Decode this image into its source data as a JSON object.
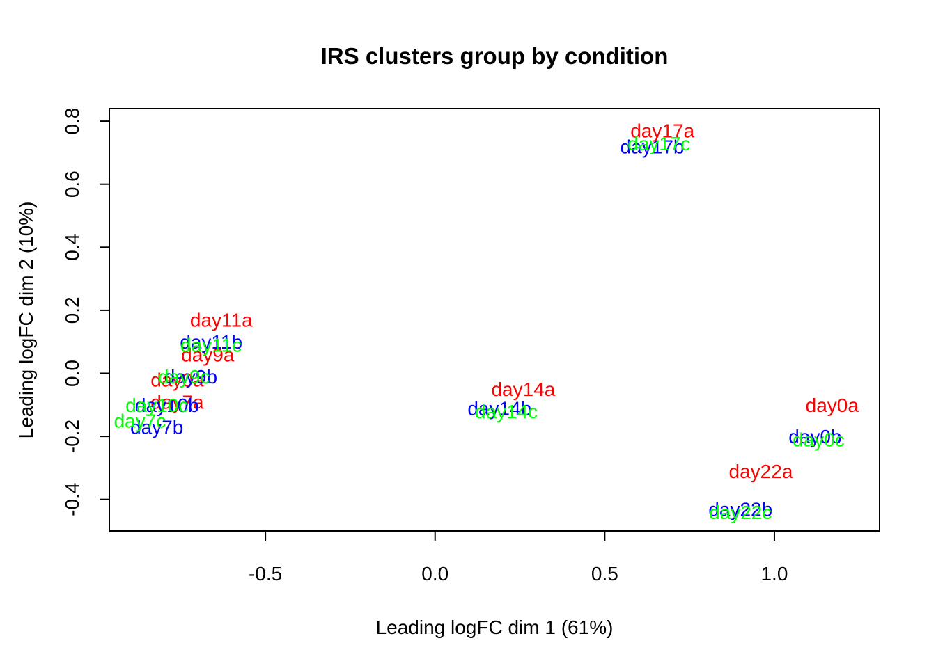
{
  "chart_data": {
    "type": "scatter",
    "title": "IRS clusters group by condition",
    "xlabel": "Leading logFC dim 1 (61%)",
    "ylabel": "Leading logFC dim 2 (10%)",
    "xlim": [
      -0.96,
      1.31
    ],
    "ylim": [
      -0.5,
      0.84
    ],
    "xticks": [
      -0.5,
      0.0,
      0.5,
      1.0
    ],
    "xtick_labels": [
      "-0.5",
      "0.0",
      "0.5",
      "1.0"
    ],
    "yticks": [
      -0.4,
      -0.2,
      0.0,
      0.2,
      0.4,
      0.6,
      0.8
    ],
    "ytick_labels": [
      "-0.4",
      "-0.2",
      "0.0",
      "0.2",
      "0.4",
      "0.6",
      "0.8"
    ],
    "grid": false,
    "colors": {
      "a": "#FF0000",
      "b": "#0000FF",
      "c": "#00FF00"
    },
    "points": [
      {
        "label": "day17a",
        "x": 0.67,
        "y": 0.77,
        "group": "a"
      },
      {
        "label": "day11a",
        "x": -0.63,
        "y": 0.17,
        "group": "a"
      },
      {
        "label": "day9a",
        "x": -0.67,
        "y": 0.06,
        "group": "a"
      },
      {
        "label": "day0a",
        "x": -0.76,
        "y": -0.02,
        "group": "a"
      },
      {
        "label": "day7a",
        "x": -0.76,
        "y": -0.09,
        "group": "a"
      },
      {
        "label": "day14a",
        "x": 0.26,
        "y": -0.05,
        "group": "a"
      },
      {
        "label": "day0a",
        "x": 1.17,
        "y": -0.1,
        "group": "a"
      },
      {
        "label": "day22a",
        "x": 0.96,
        "y": -0.31,
        "group": "a"
      },
      {
        "label": "day17b",
        "x": 0.64,
        "y": 0.72,
        "group": "b"
      },
      {
        "label": "day11b",
        "x": -0.66,
        "y": 0.1,
        "group": "b"
      },
      {
        "label": "day9b",
        "x": -0.72,
        "y": -0.01,
        "group": "b"
      },
      {
        "label": "day10b",
        "x": -0.79,
        "y": -0.1,
        "group": "b"
      },
      {
        "label": "day7b",
        "x": -0.82,
        "y": -0.17,
        "group": "b"
      },
      {
        "label": "day14b",
        "x": 0.19,
        "y": -0.11,
        "group": "b"
      },
      {
        "label": "day0b",
        "x": 1.12,
        "y": -0.2,
        "group": "b"
      },
      {
        "label": "day22b",
        "x": 0.9,
        "y": -0.43,
        "group": "b"
      },
      {
        "label": "day17c",
        "x": 0.66,
        "y": 0.73,
        "group": "c"
      },
      {
        "label": "day11c",
        "x": -0.66,
        "y": 0.09,
        "group": "c"
      },
      {
        "label": "day9c",
        "x": -0.74,
        "y": -0.01,
        "group": "c"
      },
      {
        "label": "day10c",
        "x": -0.82,
        "y": -0.1,
        "group": "c"
      },
      {
        "label": "day7c",
        "x": -0.87,
        "y": -0.15,
        "group": "c"
      },
      {
        "label": "day14c",
        "x": 0.21,
        "y": -0.12,
        "group": "c"
      },
      {
        "label": "day0c",
        "x": 1.13,
        "y": -0.21,
        "group": "c"
      },
      {
        "label": "day22c",
        "x": 0.9,
        "y": -0.44,
        "group": "c"
      }
    ]
  }
}
